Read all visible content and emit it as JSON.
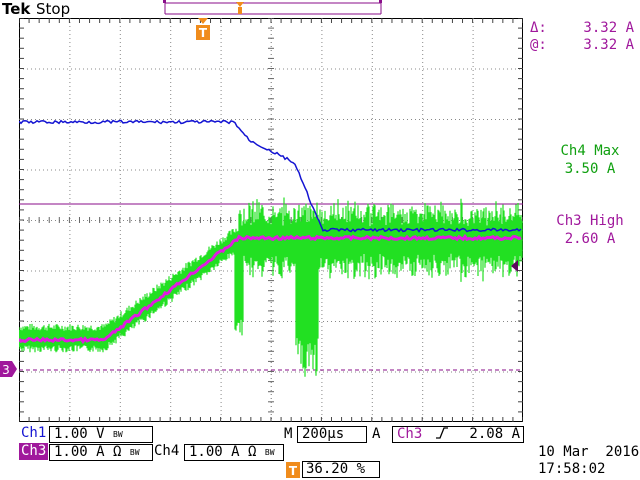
{
  "header": {
    "brand": "Tek",
    "run_state": "Stop"
  },
  "readouts": {
    "delta_label": "Δ:",
    "delta_value": "3.32 A",
    "at_label": "@:",
    "at_value": "3.32 A",
    "ch4_max_label": "Ch4 Max",
    "ch4_max_value": "3.50 A",
    "ch3_high_label": "Ch3 High",
    "ch3_high_value": "2.60 A"
  },
  "markers": {
    "trigger_icon": "T",
    "ch3_ground": "3"
  },
  "status": {
    "ch1_label": "Ch1",
    "ch1_scale": "1.00 V",
    "ch1_bw": "BW",
    "ch3_label": "Ch3",
    "ch3_scale": "1.00 A Ω",
    "ch3_bw": "BW",
    "ch4_label": "Ch4",
    "ch4_scale": "1.00 A Ω",
    "ch4_bw": "BW",
    "timebase_label": "M",
    "timebase_value": "200µs",
    "trig_mode": "A",
    "trig_source": "Ch3",
    "trig_level": "2.08 A",
    "trig_pos_icon": "T",
    "trig_pos_value": "36.20 %",
    "date": "10 Mar  2016",
    "time": "17:58:02"
  },
  "colors": {
    "ch1": "#1414d2",
    "ch3": "#e01ce0",
    "ch4": "#22e022",
    "cursor": "#8a0e8a",
    "trigger": "#f08c1c",
    "grid": "#000000"
  }
}
